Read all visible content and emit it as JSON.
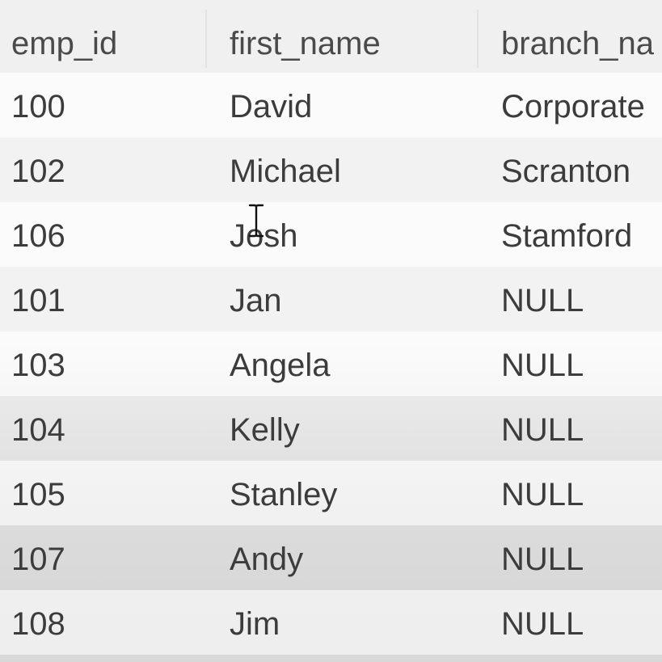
{
  "table": {
    "columns": [
      "emp_id",
      "first_name",
      "branch_na"
    ],
    "rows": [
      [
        "100",
        "David",
        "Corporate"
      ],
      [
        "102",
        "Michael",
        "Scranton"
      ],
      [
        "106",
        "Josh",
        "Stamford"
      ],
      [
        "101",
        "Jan",
        "NULL"
      ],
      [
        "103",
        "Angela",
        "NULL"
      ],
      [
        "104",
        "Kelly",
        "NULL"
      ],
      [
        "105",
        "Stanley",
        "NULL"
      ],
      [
        "107",
        "Andy",
        "NULL"
      ],
      [
        "108",
        "Jim",
        "NULL"
      ]
    ]
  },
  "cursor": {
    "icon": "text-cursor-icon"
  }
}
